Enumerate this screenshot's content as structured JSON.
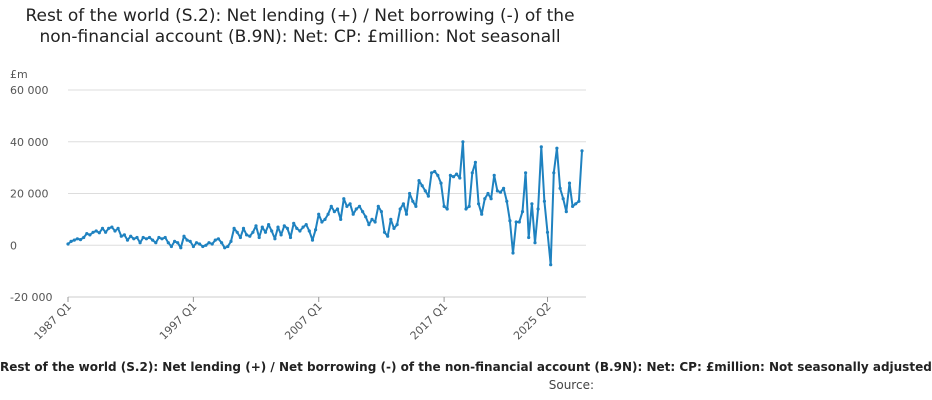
{
  "chart_data": {
    "type": "line",
    "title": "Rest of the world (S.2): Net lending (+) / Net borrowing (-) of the non-financial account (B.9N): Net: CP: £million: Not seasonall",
    "unit_label": "£m",
    "legend_label": "Rest of the world (S.2): Net lending (+) / Net borrowing (-) of the non-financial account (B.9N): Net: CP: £million: Not seasonally adjusted",
    "source_label": "Source:",
    "ylim": [
      -20000,
      60000
    ],
    "yticks": [
      {
        "value": 60000,
        "label": "60 000"
      },
      {
        "value": 40000,
        "label": "40 000"
      },
      {
        "value": 20000,
        "label": "20 000"
      },
      {
        "value": 0,
        "label": "0"
      },
      {
        "value": -20000,
        "label": "-20 000"
      }
    ],
    "xticks": [
      "1987 Q1",
      "1997 Q1",
      "2007 Q1",
      "2017 Q1",
      "2025 Q2"
    ],
    "start": "1987 Q1",
    "end": "2025 Q2",
    "grid": true,
    "series": [
      {
        "color": "#1f82c0",
        "values": [
          500,
          1500,
          2000,
          2500,
          2200,
          3000,
          4500,
          4000,
          5000,
          5500,
          4800,
          6500,
          5000,
          6500,
          7000,
          5500,
          6500,
          3500,
          4000,
          2000,
          3500,
          2500,
          3000,
          1000,
          3000,
          2500,
          3000,
          2000,
          1000,
          3000,
          2500,
          3000,
          1000,
          -500,
          1500,
          1000,
          -1000,
          3500,
          2000,
          1500,
          -500,
          1000,
          500,
          -500,
          0,
          1000,
          500,
          2000,
          2500,
          1000,
          -1000,
          -500,
          1500,
          6500,
          5000,
          3000,
          6500,
          4000,
          3500,
          5000,
          7500,
          3000,
          7000,
          5000,
          8000,
          5500,
          2500,
          7000,
          4000,
          7500,
          6500,
          3000,
          8500,
          6500,
          5500,
          7000,
          8000,
          5500,
          2000,
          6000,
          12000,
          9000,
          10000,
          12000,
          15000,
          13000,
          14000,
          10000,
          18000,
          15000,
          16000,
          12000,
          14000,
          15000,
          13000,
          11000,
          8000,
          10000,
          9000,
          15000,
          13000,
          5000,
          3500,
          10000,
          6500,
          8000,
          14000,
          16000,
          12000,
          20000,
          17000,
          15000,
          25000,
          23000,
          21000,
          19000,
          28000,
          28500,
          27000,
          24000,
          15000,
          14000,
          27000,
          26500,
          27500,
          26000,
          40000,
          14000,
          15000,
          28000,
          32000,
          16000,
          12000,
          18000,
          20000,
          18000,
          27000,
          21000,
          20500,
          22000,
          17000,
          9500,
          -3000,
          9000,
          9000,
          13000,
          28000,
          3000,
          16000,
          1000,
          14000,
          38000,
          17000,
          5000,
          -7500,
          28000,
          37500,
          22000,
          18000,
          13000,
          24000,
          15000,
          16000,
          17000,
          36500
        ]
      }
    ]
  }
}
